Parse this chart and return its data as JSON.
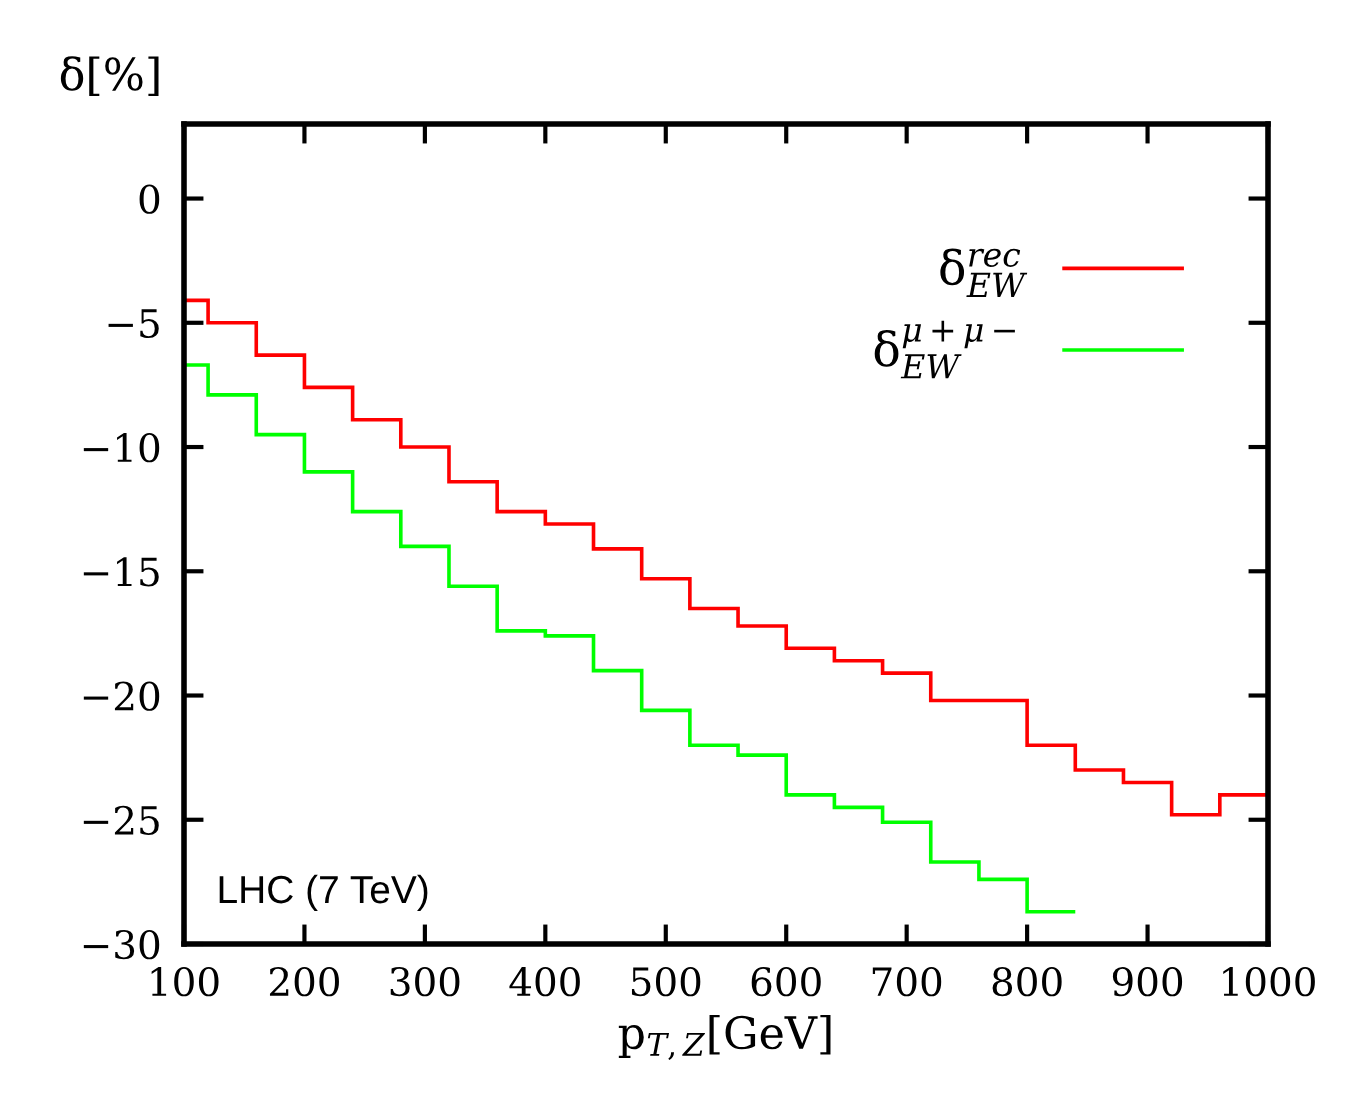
{
  "chart_data": {
    "type": "histogram",
    "xlabel": "p$_{T,Z}$[GeV]",
    "ylabel": "δ[%]",
    "bins": [
      100,
      120,
      160,
      200,
      240,
      280,
      320,
      360,
      400,
      440,
      480,
      520,
      560,
      600,
      640,
      680,
      720,
      760,
      800,
      840,
      880,
      920,
      960,
      1000
    ],
    "series": [
      {
        "name": "δ$^{rec}$$_{EW}$",
        "color": "#ff0000",
        "values": [
          -4.1,
          -5.0,
          -6.3,
          -7.6,
          -8.9,
          -10.0,
          -11.4,
          -12.6,
          -13.1,
          -14.1,
          -15.3,
          -16.5,
          -17.2,
          -18.1,
          -18.6,
          -19.1,
          -20.2,
          -20.2,
          -22.0,
          -23.0,
          -23.5,
          -24.8,
          -24.0
        ]
      },
      {
        "name": "δ$^{μ+μ−}$$_{EW}$",
        "color": "#00ff00",
        "bins": [
          100,
          120,
          160,
          200,
          240,
          280,
          320,
          360,
          400,
          440,
          480,
          520,
          560,
          600,
          640,
          680,
          720,
          760,
          800,
          840
        ],
        "values": [
          -6.7,
          -7.9,
          -9.5,
          -11.0,
          -12.6,
          -14.0,
          -15.6,
          -17.4,
          -17.6,
          -19.0,
          -20.6,
          -22.0,
          -22.4,
          -24.0,
          -24.5,
          -25.1,
          -26.7,
          -27.4,
          -28.7
        ]
      }
    ],
    "xlim": [
      100,
      1000
    ],
    "ylim": [
      -30,
      3
    ],
    "xticks": [
      100,
      200,
      300,
      400,
      500,
      600,
      700,
      800,
      900,
      1000
    ],
    "yticks": [
      {
        "value": 0,
        "label": "0"
      },
      {
        "value": -5,
        "label": "−5"
      },
      {
        "value": -10,
        "label": "−10"
      },
      {
        "value": -15,
        "label": "−15"
      },
      {
        "value": -20,
        "label": "−20"
      },
      {
        "value": -25,
        "label": "−25"
      },
      {
        "value": -30,
        "label": "−30"
      }
    ],
    "legend": "top right",
    "grid": false,
    "annotations": [
      {
        "text": "LHC (7 TeV)"
      }
    ]
  }
}
